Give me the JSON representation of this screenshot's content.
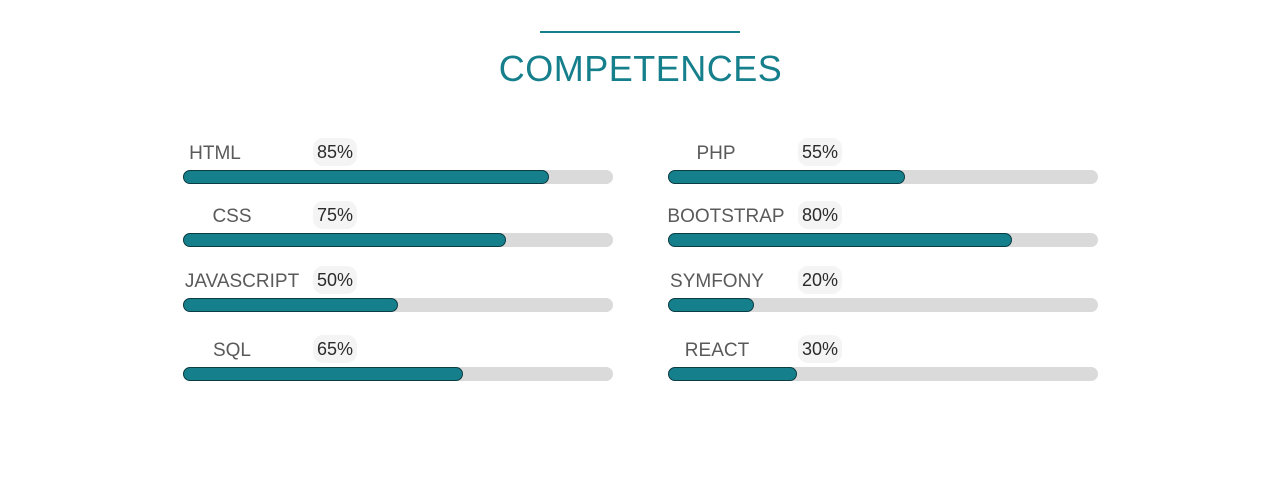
{
  "section": {
    "title": "COMPETENCES",
    "accent_color": "#157f8c",
    "track_color": "#dadada"
  },
  "skills": [
    {
      "name": "HTML",
      "percent_label": "85%",
      "level": 0.85
    },
    {
      "name": "CSS",
      "percent_label": "75%",
      "level": 0.75
    },
    {
      "name": "JAVASCRIPT",
      "percent_label": "50%",
      "level": 0.5
    },
    {
      "name": "SQL",
      "percent_label": "65%",
      "level": 0.65
    },
    {
      "name": "PHP",
      "percent_label": "55%",
      "level": 0.55
    },
    {
      "name": "BOOTSTRAP",
      "percent_label": "80%",
      "level": 0.8
    },
    {
      "name": "SYMFONY",
      "percent_label": "20%",
      "level": 0.2
    },
    {
      "name": "REACT",
      "percent_label": "30%",
      "level": 0.3
    }
  ]
}
